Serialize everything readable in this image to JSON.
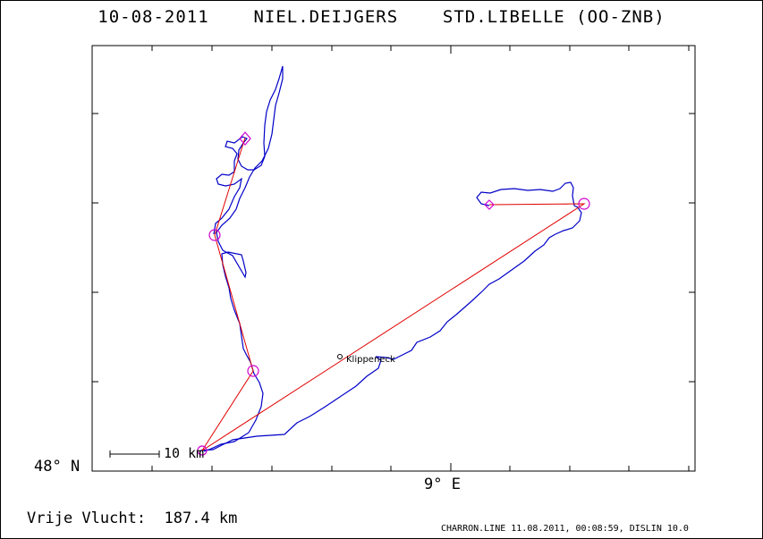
{
  "header": {
    "title": "10-08-2011    NIEL.DEIJGERS    STD.LIBELLE (OO-ZNB)"
  },
  "chart_data": {
    "type": "line",
    "title": "10-08-2011    NIEL.DEIJGERS    STD.LIBELLE (OO-ZNB)",
    "x_tick_label": "9° E",
    "y_tick_label": "48° N",
    "scale_bar_label": "10 km",
    "town_label": "Klippeneck",
    "grid": false,
    "series": [
      {
        "role": "flight-track",
        "color": "#0000c8"
      },
      {
        "role": "task-legs",
        "color": "#e00000"
      }
    ],
    "turnpoint_color": "#d000d0"
  },
  "footer": {
    "distance_text": "Vrije Vlucht:  187.4 km",
    "credit": "CHARRON.LINE 11.08.2011, 00:08:59, DISLIN 10.0"
  }
}
